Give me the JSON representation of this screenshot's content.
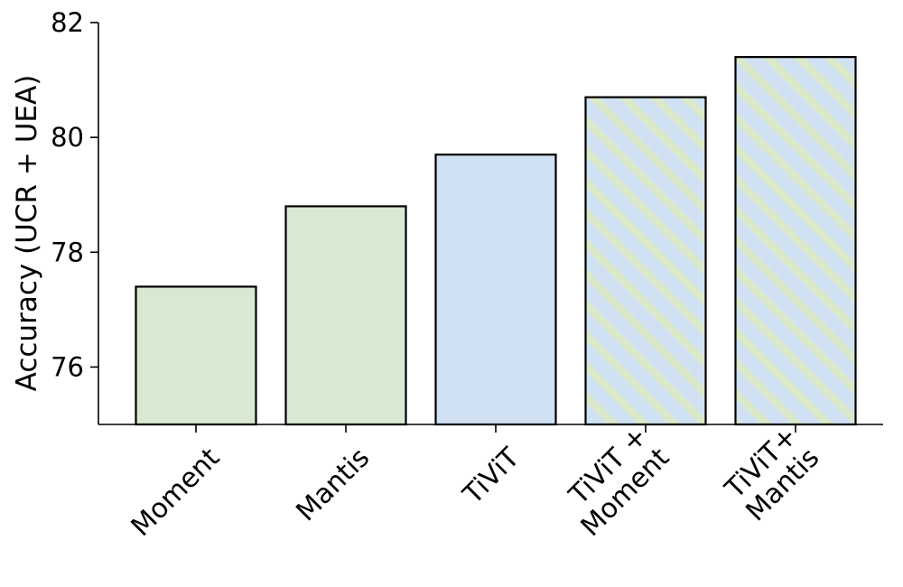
{
  "chart_data": {
    "type": "bar",
    "categories": [
      "Moment",
      "Mantis",
      "TiViT",
      "TiViT +\nMoment",
      "TiViT+\nMantis"
    ],
    "values": [
      77.4,
      78.8,
      79.7,
      80.7,
      81.4
    ],
    "styles": [
      "solid-green",
      "solid-green",
      "solid-blue",
      "hatched",
      "hatched"
    ],
    "title": "",
    "xlabel": "",
    "ylabel": "Accuracy (UCR + UEA)",
    "ylim": [
      75,
      82
    ],
    "yticks": [
      76,
      78,
      80,
      82
    ],
    "grid": false,
    "colors": {
      "green": "#d9e8d1",
      "blue": "#cfe1f3",
      "hatch": "#dbe8c9",
      "edge": "#000000"
    }
  }
}
